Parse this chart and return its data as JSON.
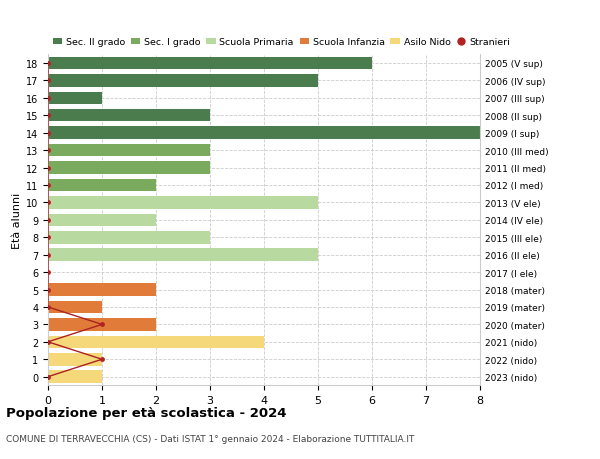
{
  "ages": [
    18,
    17,
    16,
    15,
    14,
    13,
    12,
    11,
    10,
    9,
    8,
    7,
    6,
    5,
    4,
    3,
    2,
    1,
    0
  ],
  "right_labels": [
    "2005 (V sup)",
    "2006 (IV sup)",
    "2007 (III sup)",
    "2008 (II sup)",
    "2009 (I sup)",
    "2010 (III med)",
    "2011 (II med)",
    "2012 (I med)",
    "2013 (V ele)",
    "2014 (IV ele)",
    "2015 (III ele)",
    "2016 (II ele)",
    "2017 (I ele)",
    "2018 (mater)",
    "2019 (mater)",
    "2020 (mater)",
    "2021 (nido)",
    "2022 (nido)",
    "2023 (nido)"
  ],
  "bar_values": [
    6,
    5,
    1,
    3,
    8,
    3,
    3,
    2,
    5,
    2,
    3,
    5,
    0,
    2,
    1,
    2,
    4,
    1,
    1
  ],
  "bar_colors": [
    "#4a7c4e",
    "#4a7c4e",
    "#4a7c4e",
    "#4a7c4e",
    "#4a7c4e",
    "#7aaa5e",
    "#7aaa5e",
    "#7aaa5e",
    "#b8d9a0",
    "#b8d9a0",
    "#b8d9a0",
    "#b8d9a0",
    "#b8d9a0",
    "#e07b3a",
    "#e07b3a",
    "#e07b3a",
    "#f5d87a",
    "#f5d87a",
    "#f5d87a"
  ],
  "stranieri_values": [
    0,
    0,
    0,
    0,
    0,
    0,
    0,
    0,
    0,
    0,
    0,
    0,
    0,
    0,
    0,
    1,
    0,
    1,
    0
  ],
  "legend_labels": [
    "Sec. II grado",
    "Sec. I grado",
    "Scuola Primaria",
    "Scuola Infanzia",
    "Asilo Nido",
    "Stranieri"
  ],
  "legend_colors": [
    "#4a7c4e",
    "#7aaa5e",
    "#b8d9a0",
    "#e07b3a",
    "#f5d87a",
    "#b22222"
  ],
  "title": "Popolazione per età scolastica - 2024",
  "subtitle": "COMUNE DI TERRAVECCHIA (CS) - Dati ISTAT 1° gennaio 2024 - Elaborazione TUTTITALIA.IT",
  "ylabel": "Età alunni",
  "xlim": [
    0,
    8
  ],
  "xticks": [
    0,
    1,
    2,
    3,
    4,
    5,
    6,
    7,
    8
  ],
  "background_color": "#ffffff",
  "grid_color": "#cccccc"
}
